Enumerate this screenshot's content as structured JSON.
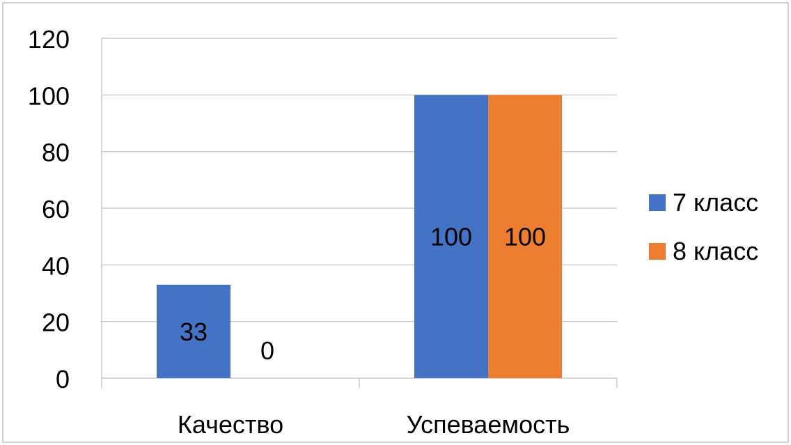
{
  "chart_data": {
    "type": "bar",
    "title": "",
    "xlabel": "",
    "ylabel": "",
    "categories": [
      "Качество",
      "Успеваемость"
    ],
    "series": [
      {
        "name": "7 класс",
        "values": [
          33,
          100
        ],
        "color": "#4472C4"
      },
      {
        "name": "8 класс",
        "values": [
          0,
          100
        ],
        "color": "#ED7D31"
      }
    ],
    "ylim": [
      0,
      120
    ],
    "yticks": [
      0,
      20,
      40,
      60,
      80,
      100,
      120
    ],
    "grid": true,
    "legend_position": "right",
    "data_labels": true
  },
  "colors": {
    "gridline": "#BFBFBF",
    "frame": "#BFBFBF",
    "text": "#000000"
  }
}
